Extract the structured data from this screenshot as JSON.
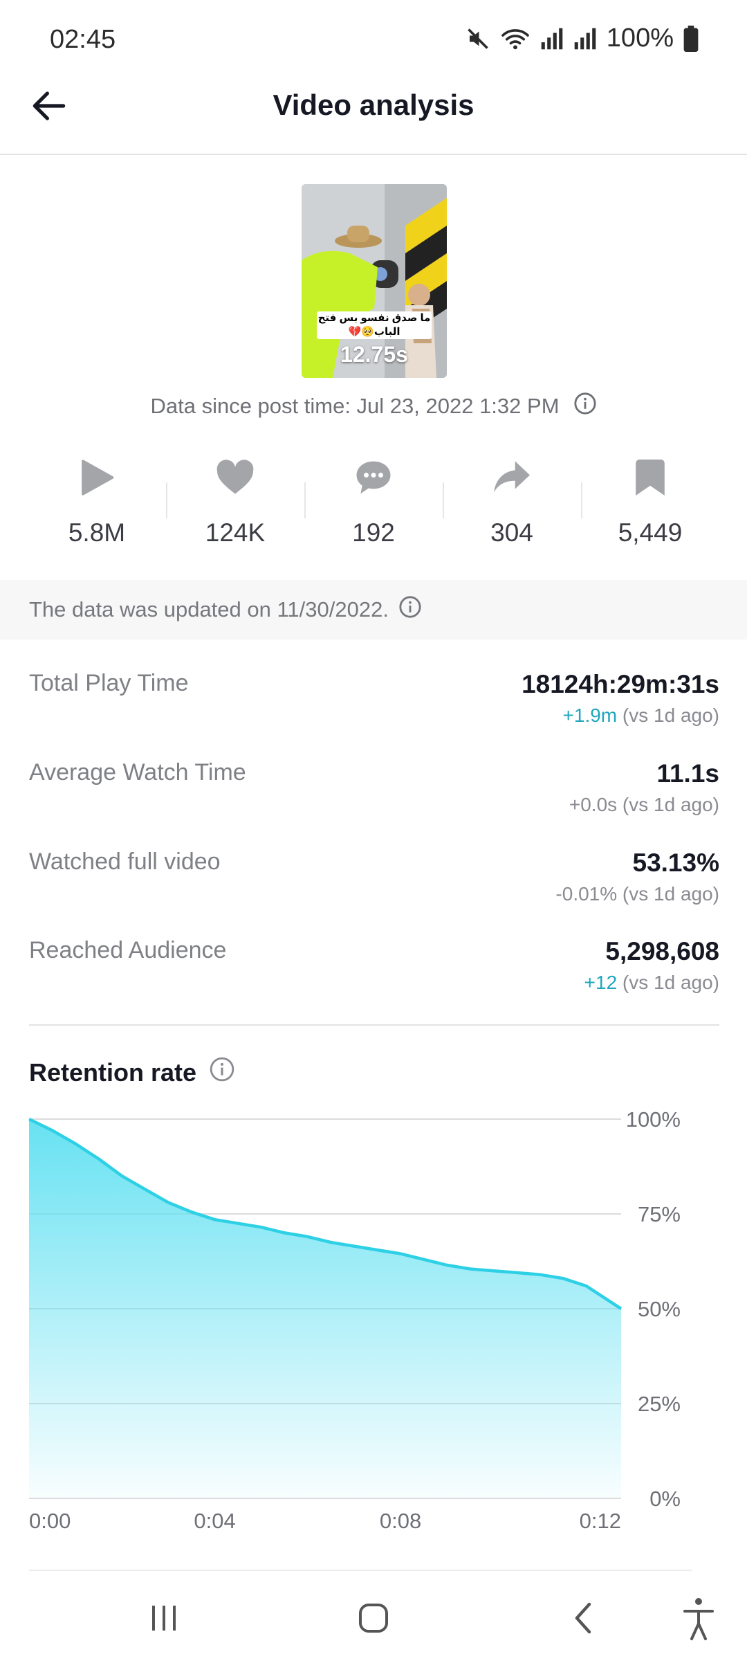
{
  "status_bar": {
    "time": "02:45",
    "battery": "100%",
    "icons": [
      "mute-icon",
      "wifi-icon",
      "signal-icon",
      "signal-icon",
      "battery-icon"
    ]
  },
  "header": {
    "title": "Video analysis",
    "back_icon": "arrow-left-icon"
  },
  "video": {
    "caption": "ما صدق نفسو بس فتح الباب🥺💔",
    "duration": "12.75s"
  },
  "post_time": {
    "text": "Data since post time: Jul 23, 2022 1:32 PM",
    "info_icon": "info-icon"
  },
  "stats": [
    {
      "icon": "play-icon",
      "value": "5.8M"
    },
    {
      "icon": "heart-icon",
      "value": "124K"
    },
    {
      "icon": "comment-icon",
      "value": "192"
    },
    {
      "icon": "share-icon",
      "value": "304"
    },
    {
      "icon": "bookmark-icon",
      "value": "5,449"
    }
  ],
  "update_banner": {
    "text": "The data was updated on 11/30/2022."
  },
  "metrics": [
    {
      "label": "Total Play Time",
      "value": "18124h:29m:31s",
      "delta": "+1.9m",
      "delta_suffix": " (vs 1d ago)",
      "delta_positive": true
    },
    {
      "label": "Average Watch Time",
      "value": "11.1s",
      "delta": "+0.0s",
      "delta_suffix": " (vs 1d ago)",
      "delta_positive": false
    },
    {
      "label": "Watched full video",
      "value": "53.13%",
      "delta": "-0.01%",
      "delta_suffix": " (vs 1d ago)",
      "delta_positive": false
    },
    {
      "label": "Reached Audience",
      "value": "5,298,608",
      "delta": "+12",
      "delta_suffix": " (vs 1d ago)",
      "delta_positive": true
    }
  ],
  "retention": {
    "title": "Retention rate"
  },
  "chart_data": {
    "type": "area",
    "title": "Retention rate",
    "x": [
      0,
      0.5,
      1,
      1.5,
      2,
      2.5,
      3,
      3.5,
      4,
      4.5,
      5,
      5.5,
      6,
      6.5,
      7,
      7.5,
      8,
      8.5,
      9,
      9.5,
      10,
      10.5,
      11,
      11.5,
      12,
      12.75
    ],
    "y": [
      100,
      97,
      93.5,
      89.5,
      85,
      81.5,
      78,
      75.5,
      73.5,
      72.5,
      71.5,
      70,
      69,
      67.5,
      66.5,
      65.5,
      64.5,
      63,
      61.5,
      60.5,
      60,
      59.5,
      59,
      58,
      56,
      50
    ],
    "x_ticks": [
      "0:00",
      "0:04",
      "0:08",
      "0:12"
    ],
    "x_tick_values": [
      0,
      4,
      8,
      12
    ],
    "y_ticks": [
      "100%",
      "75%",
      "50%",
      "25%",
      "0%"
    ],
    "y_tick_values": [
      100,
      75,
      50,
      25,
      0
    ],
    "xlim": [
      0,
      12.75
    ],
    "ylim": [
      0,
      100
    ],
    "grid": true,
    "color": "#2ed0e6"
  },
  "nav_bar": {
    "items": [
      "recents-icon",
      "home-icon",
      "back-icon",
      "accessibility-icon"
    ]
  }
}
